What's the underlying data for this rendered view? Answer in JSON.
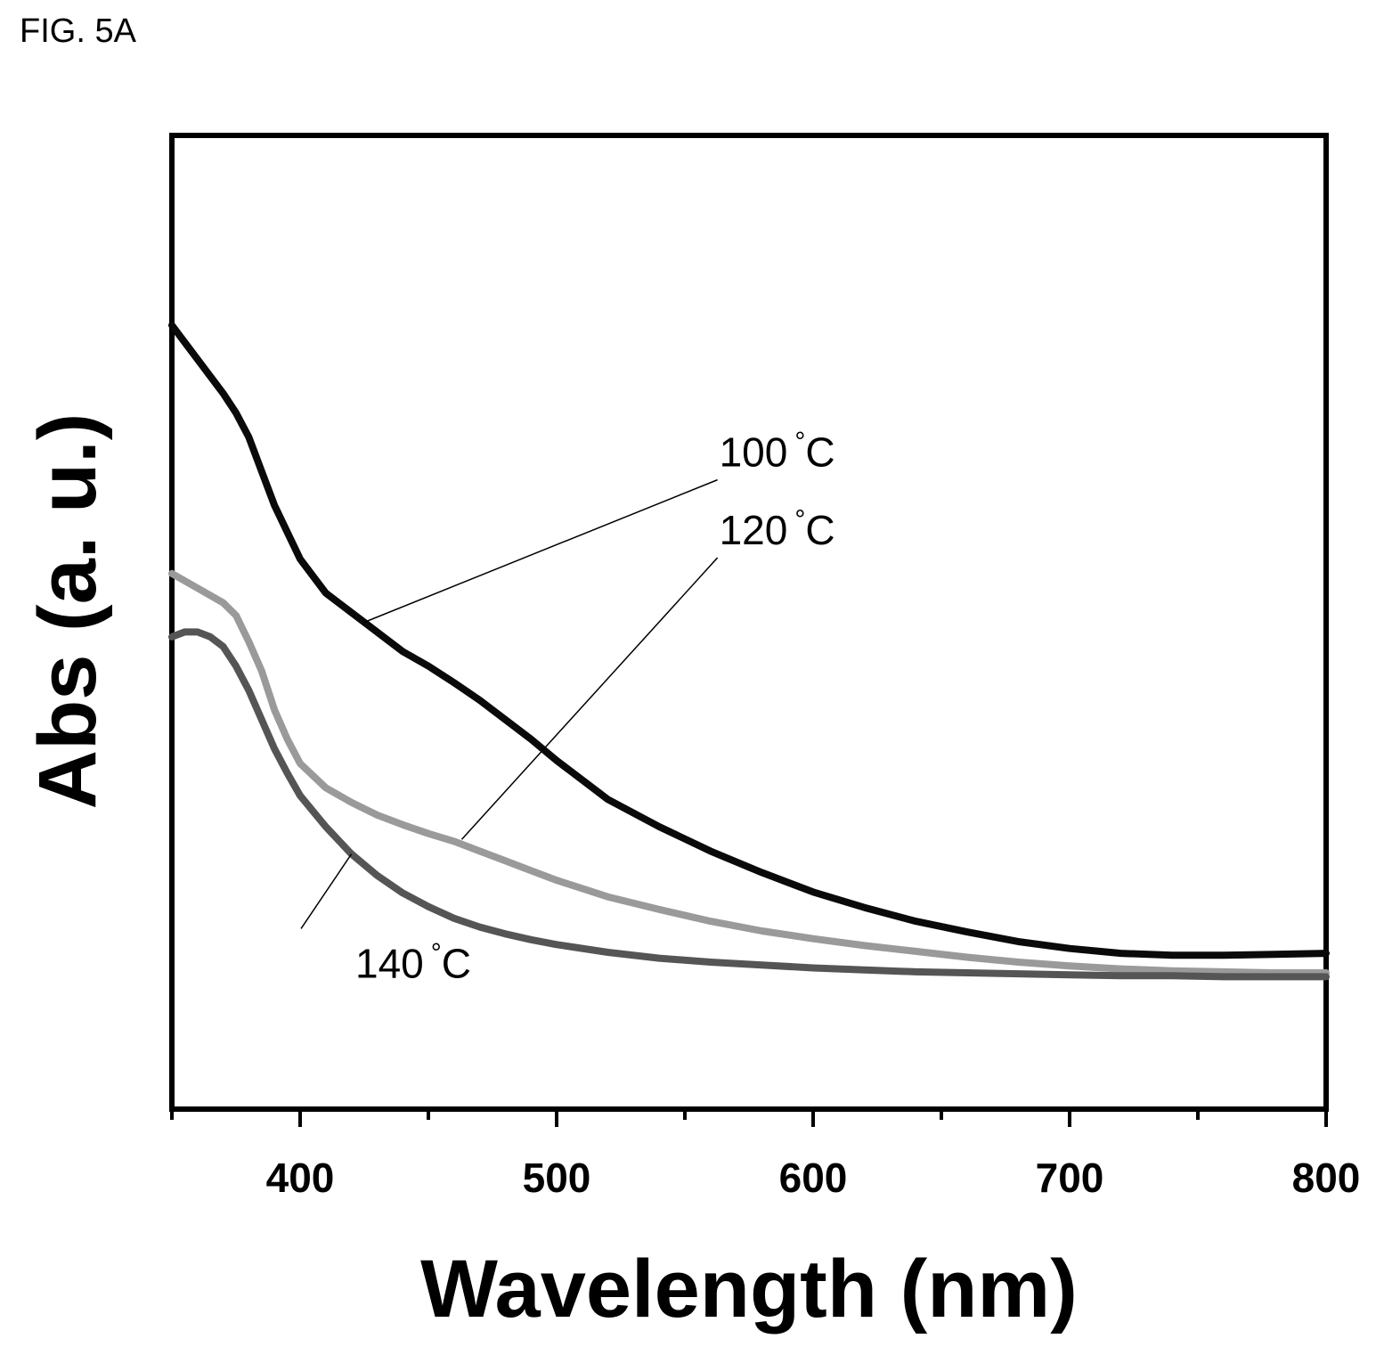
{
  "figure_label": "FIG. 5A",
  "chart_data": {
    "type": "line",
    "title": "",
    "xlabel": "Wavelength (nm)",
    "ylabel": "Abs (a. u.)",
    "xlim": [
      350,
      800
    ],
    "ylim": [
      0,
      1.0
    ],
    "x_ticks": [
      400,
      500,
      600,
      700,
      800
    ],
    "y_ticks_labeled": false,
    "grid": false,
    "legend": "none (curves labelled inline)",
    "series": [
      {
        "name": "100 °C",
        "label_text": "100",
        "label_unit": "°C",
        "color": "#0a0a0a",
        "x": [
          350,
          360,
          370,
          375,
          380,
          385,
          390,
          400,
          410,
          420,
          430,
          440,
          450,
          460,
          470,
          480,
          490,
          500,
          520,
          540,
          560,
          580,
          600,
          620,
          640,
          660,
          680,
          700,
          720,
          740,
          760,
          780,
          800
        ],
        "y": [
          0.805,
          0.77,
          0.735,
          0.715,
          0.69,
          0.655,
          0.62,
          0.565,
          0.53,
          0.51,
          0.49,
          0.47,
          0.455,
          0.438,
          0.42,
          0.4,
          0.38,
          0.358,
          0.318,
          0.29,
          0.265,
          0.243,
          0.223,
          0.207,
          0.193,
          0.182,
          0.172,
          0.165,
          0.16,
          0.158,
          0.158,
          0.159,
          0.16
        ]
      },
      {
        "name": "120 °C",
        "label_text": "120",
        "label_unit": "°C",
        "color": "#9a9a9a",
        "x": [
          350,
          360,
          370,
          375,
          380,
          385,
          390,
          395,
          400,
          410,
          420,
          430,
          440,
          450,
          460,
          470,
          480,
          490,
          500,
          520,
          540,
          560,
          580,
          600,
          620,
          640,
          660,
          680,
          700,
          720,
          740,
          760,
          780,
          800
        ],
        "y": [
          0.55,
          0.535,
          0.52,
          0.507,
          0.48,
          0.45,
          0.41,
          0.38,
          0.355,
          0.33,
          0.315,
          0.302,
          0.292,
          0.283,
          0.275,
          0.265,
          0.255,
          0.245,
          0.235,
          0.218,
          0.205,
          0.193,
          0.183,
          0.175,
          0.168,
          0.162,
          0.156,
          0.151,
          0.147,
          0.144,
          0.142,
          0.141,
          0.14,
          0.14
        ]
      },
      {
        "name": "140 °C",
        "label_text": "140",
        "label_unit": "°C",
        "color": "#555555",
        "x": [
          350,
          355,
          360,
          365,
          370,
          375,
          380,
          385,
          390,
          395,
          400,
          410,
          420,
          430,
          440,
          450,
          460,
          470,
          480,
          490,
          500,
          520,
          540,
          560,
          580,
          600,
          620,
          640,
          660,
          680,
          700,
          720,
          740,
          760,
          780,
          800
        ],
        "y": [
          0.485,
          0.49,
          0.49,
          0.485,
          0.475,
          0.455,
          0.43,
          0.4,
          0.37,
          0.345,
          0.322,
          0.29,
          0.262,
          0.24,
          0.222,
          0.208,
          0.196,
          0.187,
          0.18,
          0.174,
          0.169,
          0.161,
          0.155,
          0.151,
          0.148,
          0.145,
          0.143,
          0.141,
          0.14,
          0.139,
          0.138,
          0.137,
          0.137,
          0.136,
          0.136,
          0.136
        ]
      }
    ],
    "annotations": [
      {
        "series": "100 °C",
        "anchor": [
          425,
          0.5
        ],
        "label_at": [
          520,
          0.66
        ]
      },
      {
        "series": "120 °C",
        "anchor": [
          463,
          0.277
        ],
        "label_at": [
          520,
          0.58
        ]
      },
      {
        "series": "140 °C",
        "anchor": [
          420,
          0.262
        ],
        "label_at": [
          400,
          0.135
        ]
      }
    ]
  }
}
